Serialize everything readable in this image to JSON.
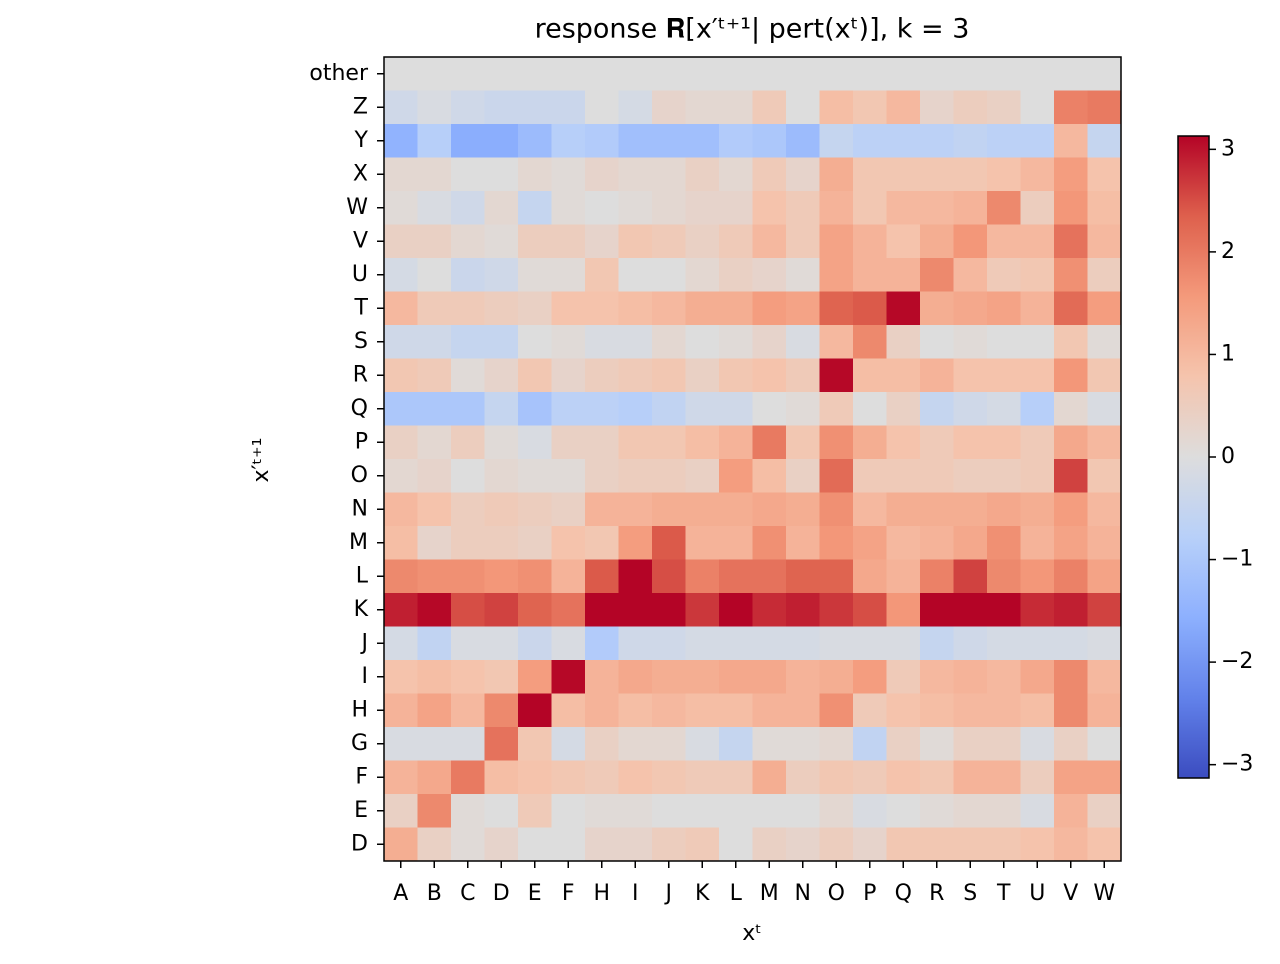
{
  "chart_data": {
    "type": "heatmap",
    "title": "response 𝐑[x′ᵗ⁺¹| pert(xᵗ)],  k = 3",
    "x_label": "xᵗ",
    "y_label": "x′ᵗ⁺¹",
    "colormap": "coolwarm",
    "columns": [
      "A",
      "B",
      "C",
      "D",
      "E",
      "F",
      "H",
      "I",
      "J",
      "K",
      "L",
      "M",
      "N",
      "O",
      "P",
      "Q",
      "R",
      "S",
      "T",
      "U",
      "V",
      "W"
    ],
    "rows": [
      "other",
      "Z",
      "Y",
      "X",
      "W",
      "V",
      "U",
      "T",
      "S",
      "R",
      "Q",
      "P",
      "O",
      "N",
      "M",
      "L",
      "K",
      "J",
      "I",
      "H",
      "G",
      "F",
      "E",
      "D"
    ],
    "z": [
      [
        0,
        0,
        0,
        0,
        0,
        0,
        0,
        0,
        0,
        0,
        0,
        0,
        0,
        0,
        0,
        0,
        0,
        0,
        0,
        0,
        0,
        0
      ],
      [
        -0.3,
        -0.1,
        -0.3,
        -0.4,
        -0.4,
        -0.4,
        0,
        -0.2,
        0.3,
        0.2,
        0.2,
        0.6,
        0,
        0.9,
        0.7,
        1.0,
        0.3,
        0.5,
        0.4,
        0,
        1.9,
        2.0
      ],
      [
        -1.5,
        -0.8,
        -1.6,
        -1.6,
        -1.3,
        -0.8,
        -0.9,
        -1.2,
        -1.2,
        -1.2,
        -0.9,
        -1.0,
        -1.3,
        -0.5,
        -0.7,
        -0.7,
        -0.7,
        -0.6,
        -0.7,
        -0.7,
        1.0,
        -0.5
      ],
      [
        0.2,
        0.2,
        0,
        0,
        0.2,
        0.1,
        0.3,
        0.2,
        0.2,
        0.4,
        0.2,
        0.6,
        0.3,
        1.2,
        0.7,
        0.7,
        0.7,
        0.7,
        0.8,
        1.0,
        1.5,
        0.8
      ],
      [
        0.1,
        -0.1,
        -0.3,
        0.2,
        -0.5,
        0.1,
        0,
        0.1,
        0.2,
        0.3,
        0.3,
        0.8,
        0.6,
        1.1,
        0.7,
        1.0,
        1.0,
        1.1,
        1.8,
        0.5,
        1.6,
        0.9
      ],
      [
        0.4,
        0.4,
        0.2,
        0.1,
        0.5,
        0.5,
        0.3,
        0.7,
        0.6,
        0.4,
        0.6,
        1.0,
        0.6,
        1.4,
        1.1,
        0.8,
        1.2,
        1.6,
        1.0,
        1.0,
        2.1,
        1.0
      ],
      [
        -0.2,
        0,
        -0.4,
        -0.3,
        0.1,
        0.1,
        0.7,
        0,
        0,
        0.2,
        0.4,
        0.3,
        0.1,
        1.4,
        1.1,
        1.1,
        1.8,
        1.0,
        0.6,
        0.7,
        1.7,
        0.5
      ],
      [
        1.0,
        0.6,
        0.6,
        0.5,
        0.4,
        0.8,
        0.8,
        0.9,
        1.0,
        1.2,
        1.2,
        1.5,
        1.4,
        2.3,
        2.4,
        3.1,
        1.2,
        1.3,
        1.4,
        1.1,
        2.2,
        1.5
      ],
      [
        -0.3,
        -0.3,
        -0.5,
        -0.5,
        0,
        0.1,
        -0.1,
        -0.1,
        0.2,
        0,
        0.1,
        0.3,
        -0.1,
        1.0,
        1.8,
        0.4,
        0,
        0.1,
        0,
        0,
        0.7,
        0.1
      ],
      [
        0.7,
        0.6,
        0.1,
        0.3,
        0.7,
        0.3,
        0.5,
        0.6,
        0.7,
        0.4,
        0.7,
        0.8,
        0.6,
        3.1,
        0.9,
        0.9,
        1.1,
        0.8,
        0.8,
        0.8,
        1.6,
        0.7
      ],
      [
        -1.0,
        -1.0,
        -1.0,
        -0.5,
        -1.1,
        -0.7,
        -0.7,
        -0.8,
        -0.6,
        -0.3,
        -0.3,
        0,
        0.1,
        0.6,
        0,
        0.4,
        -0.5,
        -0.3,
        -0.2,
        -0.8,
        0.2,
        -0.1
      ],
      [
        0.4,
        0.2,
        0.5,
        0.1,
        -0.1,
        0.4,
        0.4,
        0.7,
        0.7,
        0.9,
        1.1,
        2.0,
        0.7,
        1.7,
        1.2,
        0.8,
        0.6,
        0.8,
        0.8,
        0.6,
        1.3,
        1.0
      ],
      [
        0.2,
        0.3,
        0,
        0.2,
        0.1,
        0.1,
        0.4,
        0.5,
        0.5,
        0.4,
        1.5,
        0.9,
        0.4,
        2.2,
        0.6,
        0.6,
        0.6,
        0.5,
        0.5,
        0.6,
        2.6,
        0.7
      ],
      [
        1.0,
        0.8,
        0.5,
        0.6,
        0.5,
        0.4,
        1.1,
        1.1,
        1.2,
        1.2,
        1.2,
        1.3,
        1.2,
        1.7,
        1.0,
        1.2,
        1.2,
        1.2,
        1.3,
        1.2,
        1.5,
        1.0
      ],
      [
        0.9,
        0.3,
        0.5,
        0.5,
        0.4,
        0.8,
        0.7,
        1.5,
        2.4,
        1.1,
        1.1,
        1.7,
        1.1,
        1.6,
        1.4,
        1.0,
        1.1,
        1.3,
        1.7,
        1.1,
        1.4,
        1.1
      ],
      [
        1.8,
        1.7,
        1.7,
        1.6,
        1.7,
        1.1,
        2.4,
        3.2,
        2.5,
        1.9,
        2.1,
        2.1,
        2.3,
        2.3,
        1.3,
        1.1,
        1.9,
        2.6,
        1.8,
        1.6,
        1.9,
        1.4
      ],
      [
        2.9,
        3.1,
        2.5,
        2.6,
        2.3,
        2.1,
        3.2,
        3.2,
        3.2,
        2.7,
        3.2,
        2.8,
        2.9,
        2.7,
        2.5,
        1.6,
        3.2,
        3.2,
        3.2,
        2.8,
        2.9,
        2.6
      ],
      [
        -0.2,
        -0.6,
        -0.1,
        -0.1,
        -0.4,
        -0.1,
        -0.9,
        -0.3,
        -0.3,
        -0.2,
        -0.2,
        -0.2,
        -0.2,
        -0.1,
        -0.1,
        -0.1,
        -0.5,
        -0.3,
        -0.2,
        -0.2,
        -0.2,
        -0.1
      ],
      [
        0.8,
        0.9,
        0.8,
        0.7,
        1.5,
        3.1,
        1.1,
        1.3,
        1.2,
        1.2,
        1.3,
        1.3,
        1.1,
        1.2,
        1.5,
        0.6,
        1.0,
        1.1,
        1.0,
        1.3,
        1.8,
        1.0
      ],
      [
        1.1,
        1.4,
        1.0,
        1.8,
        3.2,
        0.9,
        1.1,
        0.9,
        1.0,
        0.9,
        0.9,
        1.1,
        1.1,
        1.7,
        0.6,
        0.8,
        0.9,
        1.0,
        1.0,
        0.9,
        1.8,
        1.1
      ],
      [
        -0.1,
        -0.1,
        -0.1,
        2.1,
        0.7,
        -0.2,
        0.4,
        0.2,
        0.2,
        -0.1,
        -0.5,
        0.1,
        0.1,
        0.2,
        -0.6,
        0.4,
        0.1,
        0.4,
        0.4,
        -0.1,
        0.4,
        0
      ],
      [
        1.1,
        1.3,
        2.0,
        0.9,
        0.8,
        0.7,
        0.6,
        0.8,
        0.7,
        0.6,
        0.6,
        1.2,
        0.5,
        0.7,
        0.6,
        0.8,
        0.7,
        1.1,
        1.1,
        0.5,
        1.4,
        1.4
      ],
      [
        0.4,
        1.8,
        0.1,
        0,
        0.6,
        0,
        0.1,
        0.1,
        0,
        0,
        0,
        0,
        0,
        0.2,
        -0.1,
        0,
        0.1,
        0.2,
        0.2,
        -0.1,
        1.1,
        0.4
      ],
      [
        1.2,
        0.4,
        0.1,
        0.3,
        0,
        0,
        0.3,
        0.3,
        0.5,
        0.6,
        0,
        0.4,
        0.3,
        0.5,
        0.3,
        0.7,
        0.7,
        0.7,
        0.7,
        0.8,
        1.0,
        0.8
      ]
    ],
    "zlim": [
      -3.13,
      3.13
    ],
    "zticks": [
      {
        "value": -3,
        "label": "−3"
      },
      {
        "value": -2,
        "label": "−2"
      },
      {
        "value": -1,
        "label": "−1"
      },
      0,
      1,
      2,
      3
    ]
  }
}
